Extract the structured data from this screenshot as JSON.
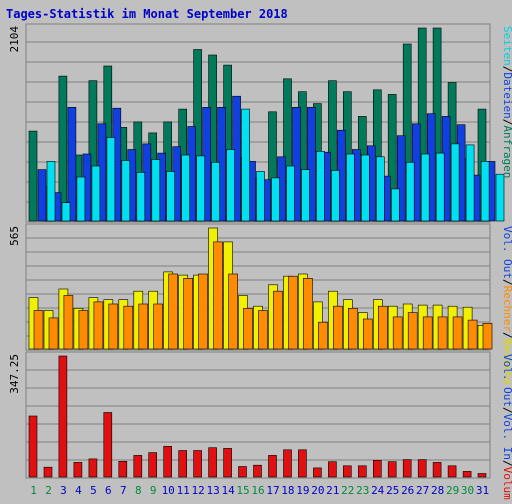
{
  "chart_data": [
    {
      "type": "bar",
      "title": "Tages-Statistik im Monat September 2018",
      "ymax_label": "2104",
      "ylim": [
        0,
        2104
      ],
      "categories": [
        "1",
        "2",
        "3",
        "4",
        "5",
        "6",
        "7",
        "8",
        "9",
        "10",
        "11",
        "12",
        "13",
        "14",
        "15",
        "16",
        "17",
        "18",
        "19",
        "20",
        "21",
        "22",
        "23",
        "24",
        "25",
        "26",
        "27",
        "28",
        "29",
        "30",
        "31"
      ],
      "weekend_categories": [
        "1",
        "2",
        "8",
        "9",
        "15",
        "16",
        "22",
        "23",
        "29",
        "30"
      ],
      "legend": [
        "Anfragen",
        "Dateien",
        "Seiten"
      ],
      "legend_separator": "/",
      "series": [
        {
          "name": "Anfragen",
          "color": "#007a5a",
          "values": [
            980,
            380,
            1580,
            720,
            1530,
            1690,
            1020,
            1080,
            960,
            1080,
            1220,
            1870,
            1810,
            1700,
            690,
            470,
            1190,
            1550,
            1410,
            1280,
            1530,
            1410,
            1140,
            1430,
            1380,
            1930,
            2104,
            2104,
            1510,
            680,
            1220
          ]
        },
        {
          "name": "Dateien",
          "color": "#1040e0",
          "values": [
            560,
            310,
            1240,
            730,
            1060,
            1230,
            780,
            840,
            740,
            810,
            1030,
            1240,
            1240,
            1360,
            650,
            450,
            700,
            1240,
            1240,
            750,
            990,
            780,
            820,
            490,
            930,
            1060,
            1170,
            1140,
            1050,
            500,
            650
          ]
        },
        {
          "name": "Seiten",
          "color": "#00e0f0",
          "values": [
            650,
            200,
            480,
            600,
            910,
            660,
            530,
            670,
            540,
            720,
            710,
            640,
            780,
            1220,
            540,
            470,
            600,
            560,
            760,
            550,
            730,
            720,
            700,
            350,
            640,
            730,
            740,
            840,
            830,
            650,
            510
          ]
        }
      ]
    },
    {
      "type": "bar",
      "ymax_label": "565",
      "ylim": [
        0,
        565
      ],
      "categories": [
        "1",
        "2",
        "3",
        "4",
        "5",
        "6",
        "7",
        "8",
        "9",
        "10",
        "11",
        "12",
        "13",
        "14",
        "15",
        "16",
        "17",
        "18",
        "19",
        "20",
        "21",
        "22",
        "23",
        "24",
        "25",
        "26",
        "27",
        "28",
        "29",
        "30",
        "31"
      ],
      "legend": [
        "Besuche",
        "Rechner",
        "Vol. Out"
      ],
      "legend_separator": "/",
      "series": [
        {
          "name": "Besuche",
          "color": "#f0f000",
          "values": [
            240,
            180,
            280,
            190,
            240,
            230,
            230,
            270,
            270,
            360,
            345,
            345,
            565,
            500,
            250,
            200,
            300,
            340,
            350,
            220,
            270,
            230,
            170,
            230,
            200,
            210,
            205,
            205,
            200,
            195,
            110
          ]
        },
        {
          "name": "Rechner",
          "color": "#ff8c00",
          "values": [
            180,
            145,
            250,
            180,
            220,
            210,
            200,
            210,
            210,
            350,
            330,
            350,
            500,
            350,
            190,
            180,
            270,
            340,
            330,
            125,
            200,
            190,
            140,
            200,
            150,
            170,
            150,
            150,
            150,
            135,
            120
          ]
        }
      ]
    },
    {
      "type": "bar",
      "ymax_label": "347.25",
      "ylim": [
        0,
        347.25
      ],
      "categories": [
        "1",
        "2",
        "3",
        "4",
        "5",
        "6",
        "7",
        "8",
        "9",
        "10",
        "11",
        "12",
        "13",
        "14",
        "15",
        "16",
        "17",
        "18",
        "19",
        "20",
        "21",
        "22",
        "23",
        "24",
        "25",
        "26",
        "27",
        "28",
        "29",
        "30",
        "31"
      ],
      "legend": [
        "Volumen",
        "Vol. In",
        "Vol. Out"
      ],
      "legend_separator": "/",
      "series": [
        {
          "name": "Volumen",
          "color": "#e01010",
          "values": [
            175,
            28,
            347.25,
            42,
            52,
            185,
            45,
            62,
            70,
            88,
            76,
            76,
            84,
            82,
            30,
            34,
            62,
            78,
            78,
            26,
            44,
            32,
            32,
            48,
            44,
            50,
            50,
            42,
            32,
            16,
            10
          ]
        }
      ]
    }
  ],
  "colors": {
    "background": "#c0c0c0",
    "title": "#0000c8",
    "weekday_label": "#0000c8",
    "weekend_label": "#008a3c",
    "grid": "#808080"
  }
}
